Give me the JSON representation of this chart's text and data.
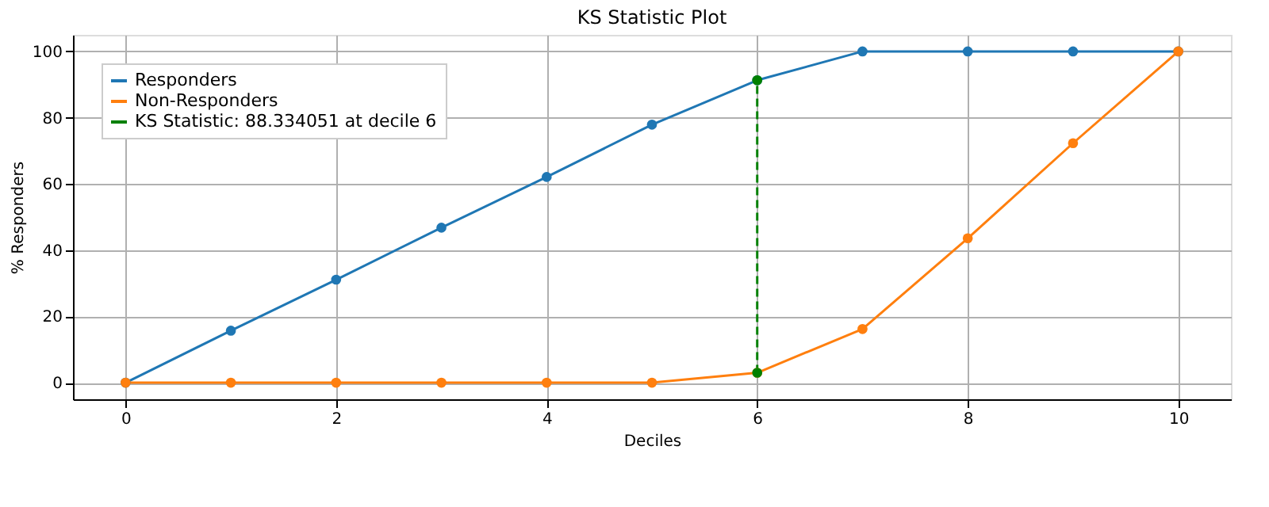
{
  "chart_data": {
    "type": "line",
    "title": "KS Statistic Plot",
    "xlabel": "Deciles",
    "ylabel": "% Responders",
    "xlim": [
      -0.5,
      10.5
    ],
    "xticks": [
      0,
      2,
      4,
      6,
      8,
      10
    ],
    "ylim": [
      -5,
      105
    ],
    "yticks": [
      0,
      20,
      40,
      60,
      80,
      100
    ],
    "grid": true,
    "legend": "top left",
    "marker": "circle",
    "series": [
      {
        "name": "Responders",
        "color": "#1f77b4",
        "line_style": "solid",
        "x": [
          0,
          1,
          2,
          3,
          4,
          5,
          6,
          7,
          8,
          9,
          10
        ],
        "values": [
          0,
          15.7,
          31.1,
          46.8,
          62.1,
          77.9,
          91.3,
          100,
          100,
          100,
          100
        ]
      },
      {
        "name": "Non-Responders",
        "color": "#ff7f0e",
        "line_style": "solid",
        "x": [
          0,
          1,
          2,
          3,
          4,
          5,
          6,
          7,
          8,
          9,
          10
        ],
        "values": [
          0,
          0,
          0,
          0,
          0,
          0,
          3.0,
          16.2,
          43.6,
          72.3,
          100
        ]
      },
      {
        "name": "KS Statistic: 88.334051 at decile 6",
        "color": "#008000",
        "line_style": "dashed",
        "x": [
          6,
          6
        ],
        "values": [
          3.0,
          91.3
        ]
      }
    ]
  }
}
